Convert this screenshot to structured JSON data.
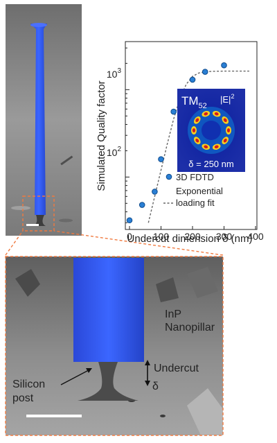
{
  "figure": {
    "panel_top_sem": {
      "description_colors": {
        "background": "#8c8c8c",
        "pillar": "#2f54e6"
      },
      "scale_bar": true
    },
    "panel_bottom_sem": {
      "labels": {
        "nanopillar": [
          "InP",
          "Nanopillar"
        ],
        "undercut": "Undercut",
        "delta": "δ",
        "silicon_post": [
          "Silicon",
          "post"
        ]
      }
    },
    "inset": {
      "mode_main": "TM",
      "mode_sub": "52",
      "field": "|E|",
      "field_sup": "2",
      "delta_label": "δ = 250 nm"
    },
    "zoom_box_color": "#f07a40"
  },
  "chart_data": {
    "type": "scatter",
    "title": "",
    "xlabel": "Undercut dimension δ (nm)",
    "ylabel": "Simulated Quality factor",
    "x_ticks": [
      "0",
      "100",
      "200",
      "300",
      "400"
    ],
    "y_ticks": [
      {
        "base": "10",
        "exp": "2"
      },
      {
        "base": "10",
        "exp": "3"
      }
    ],
    "xlim": [
      0,
      400
    ],
    "ylim_log10": [
      1.4,
      3.55
    ],
    "y_scale": "log",
    "legend": [
      {
        "name": "3D FDTD",
        "marker": "circle",
        "color": "#2a7fd4"
      },
      {
        "name": "Exponential",
        "name2": "loading fit",
        "marker": "dashed-line",
        "color": "#666666"
      }
    ],
    "series": [
      {
        "name": "3D FDTD",
        "x": [
          0,
          40,
          80,
          100,
          140,
          200,
          240,
          300
        ],
        "y": [
          32,
          48,
          68,
          160,
          560,
          1300,
          1600,
          1900
        ]
      }
    ],
    "fit_line": {
      "x": [
        60,
        80,
        100,
        120,
        140,
        160,
        180,
        200,
        220,
        240,
        260,
        280,
        300,
        320,
        340,
        360,
        380
      ],
      "y": [
        30,
        60,
        120,
        240,
        460,
        790,
        1150,
        1420,
        1550,
        1600,
        1620,
        1625,
        1628,
        1630,
        1630,
        1630,
        1630
      ]
    }
  }
}
